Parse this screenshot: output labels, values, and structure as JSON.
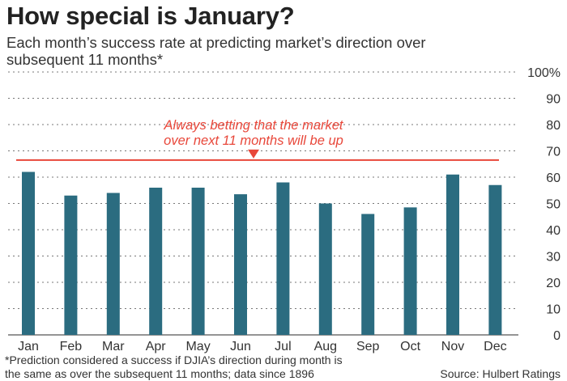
{
  "colors": {
    "bar": "#2b6c80",
    "reference": "#e8473a",
    "grid": "#777777"
  },
  "footnote": "*Prediction considered a success if DJIA’s direction during month is the same as over the subsequent 11 months; data since 1896",
  "source": "Source: Hulbert Ratings",
  "chart_data": {
    "type": "bar",
    "title": "How special is January?",
    "subtitle": "Each month’s success rate at predicting market’s direction over subsequent 11 months*",
    "categories": [
      "Jan",
      "Feb",
      "Mar",
      "Apr",
      "May",
      "Jun",
      "Jul",
      "Aug",
      "Sep",
      "Oct",
      "Nov",
      "Dec"
    ],
    "values": [
      62,
      53,
      54,
      56,
      56,
      53.5,
      58,
      50,
      46,
      48.5,
      61,
      57
    ],
    "ylim": [
      0,
      100
    ],
    "y_ticks": [
      "0",
      "10",
      "20",
      "30",
      "40",
      "50",
      "60",
      "70",
      "80",
      "90",
      "100%"
    ],
    "grid": true,
    "reference_line": {
      "value": 66.5,
      "label_line1": "Always betting that the market",
      "label_line2": "over next 11 months will be up"
    }
  }
}
